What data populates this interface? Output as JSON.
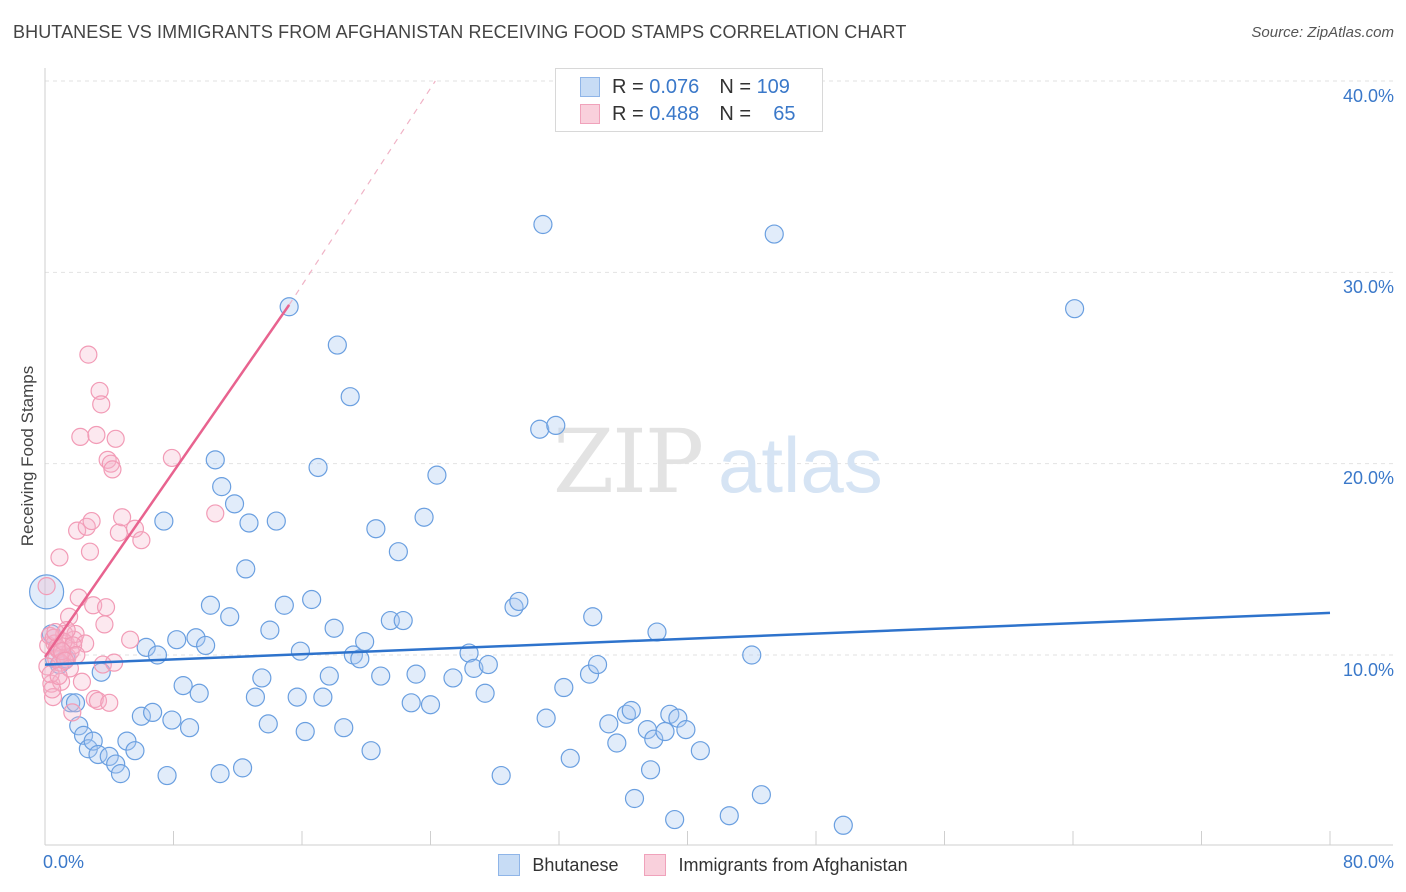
{
  "title": "BHUTANESE VS IMMIGRANTS FROM AFGHANISTAN RECEIVING FOOD STAMPS CORRELATION CHART",
  "source_prefix": "Source: ",
  "source_site": "ZipAtlas.com",
  "watermark": "ZIPatlas",
  "legend": {
    "r_label": "R =",
    "n_label": "N =",
    "blue": {
      "r": "0.076",
      "n": "109"
    },
    "pink": {
      "r": "0.488",
      "n": "65"
    }
  },
  "colors": {
    "blue": "#6a9fe0",
    "blue_line": "#2e73cc",
    "pink": "#f29bb6",
    "pink_line": "#e8638f",
    "tick": "#3a78c9"
  },
  "chart_data": {
    "type": "scatter",
    "title": "BHUTANESE VS IMMIGRANTS FROM AFGHANISTAN RECEIVING FOOD STAMPS CORRELATION CHART",
    "xlabel": "",
    "ylabel": "Receiving Food Stamps",
    "xlim": [
      0,
      80
    ],
    "ylim": [
      0,
      40
    ],
    "x_tick_labels": [
      "0.0%",
      "80.0%"
    ],
    "y_ticks": [
      10,
      20,
      30,
      40
    ],
    "y_tick_labels": [
      "10.0%",
      "20.0%",
      "30.0%",
      "40.0%"
    ],
    "legend_position": "bottom-center",
    "series": [
      {
        "name": "Bhutanese",
        "color": "#6a9fe0",
        "trend": {
          "x0": 0,
          "y0": 9.5,
          "x1": 80,
          "y1": 12.2
        },
        "points": [
          [
            0.1,
            13.3
          ],
          [
            0.4,
            11.1
          ],
          [
            0.6,
            9.8
          ],
          [
            0.9,
            9.5
          ],
          [
            1.3,
            9.8
          ],
          [
            1.6,
            7.5
          ],
          [
            1.9,
            7.5
          ],
          [
            2.1,
            6.3
          ],
          [
            2.4,
            5.8
          ],
          [
            2.7,
            5.1
          ],
          [
            3.0,
            5.5
          ],
          [
            3.3,
            4.8
          ],
          [
            3.5,
            9.1
          ],
          [
            4.0,
            4.7
          ],
          [
            4.4,
            4.3
          ],
          [
            4.7,
            3.8
          ],
          [
            5.1,
            5.5
          ],
          [
            5.6,
            5.0
          ],
          [
            6.0,
            6.8
          ],
          [
            6.3,
            10.4
          ],
          [
            6.7,
            7.0
          ],
          [
            7.0,
            10.0
          ],
          [
            7.4,
            17.0
          ],
          [
            7.6,
            3.7
          ],
          [
            7.9,
            6.6
          ],
          [
            8.2,
            10.8
          ],
          [
            8.6,
            8.4
          ],
          [
            9.0,
            6.2
          ],
          [
            9.4,
            10.9
          ],
          [
            9.6,
            8.0
          ],
          [
            10.0,
            10.5
          ],
          [
            10.3,
            12.6
          ],
          [
            10.6,
            20.2
          ],
          [
            10.9,
            3.8
          ],
          [
            11.0,
            18.8
          ],
          [
            11.5,
            12.0
          ],
          [
            11.8,
            17.9
          ],
          [
            12.3,
            4.1
          ],
          [
            12.5,
            14.5
          ],
          [
            12.7,
            16.9
          ],
          [
            13.1,
            7.8
          ],
          [
            13.5,
            8.8
          ],
          [
            13.9,
            6.4
          ],
          [
            14.0,
            11.3
          ],
          [
            14.4,
            17.0
          ],
          [
            14.9,
            12.6
          ],
          [
            15.2,
            28.2
          ],
          [
            15.7,
            7.8
          ],
          [
            15.9,
            10.2
          ],
          [
            16.2,
            6.0
          ],
          [
            16.6,
            12.9
          ],
          [
            17.0,
            19.8
          ],
          [
            17.3,
            7.8
          ],
          [
            17.7,
            8.9
          ],
          [
            18.0,
            11.4
          ],
          [
            18.2,
            26.2
          ],
          [
            18.6,
            6.2
          ],
          [
            19.0,
            23.5
          ],
          [
            19.2,
            10.0
          ],
          [
            19.6,
            9.8
          ],
          [
            19.9,
            10.7
          ],
          [
            20.3,
            5.0
          ],
          [
            20.6,
            16.6
          ],
          [
            20.9,
            8.9
          ],
          [
            21.5,
            11.8
          ],
          [
            22.0,
            15.4
          ],
          [
            22.3,
            11.8
          ],
          [
            22.8,
            7.5
          ],
          [
            23.1,
            9.0
          ],
          [
            23.6,
            17.2
          ],
          [
            24.0,
            7.4
          ],
          [
            24.4,
            19.4
          ],
          [
            25.4,
            8.8
          ],
          [
            26.4,
            10.1
          ],
          [
            26.7,
            9.3
          ],
          [
            27.4,
            8.0
          ],
          [
            27.6,
            9.5
          ],
          [
            28.4,
            3.7
          ],
          [
            29.2,
            12.5
          ],
          [
            29.5,
            12.8
          ],
          [
            30.8,
            21.8
          ],
          [
            31.0,
            32.5
          ],
          [
            31.2,
            6.7
          ],
          [
            31.8,
            22.0
          ],
          [
            32.3,
            8.3
          ],
          [
            32.7,
            4.6
          ],
          [
            33.9,
            9.0
          ],
          [
            34.1,
            12.0
          ],
          [
            34.4,
            9.5
          ],
          [
            35.1,
            6.4
          ],
          [
            35.6,
            5.4
          ],
          [
            36.2,
            6.9
          ],
          [
            36.5,
            7.1
          ],
          [
            36.7,
            2.5
          ],
          [
            37.5,
            6.1
          ],
          [
            37.7,
            4.0
          ],
          [
            37.9,
            5.6
          ],
          [
            38.1,
            11.2
          ],
          [
            38.6,
            6.0
          ],
          [
            38.9,
            6.9
          ],
          [
            39.2,
            1.4
          ],
          [
            39.4,
            6.7
          ],
          [
            39.9,
            6.1
          ],
          [
            40.8,
            5.0
          ],
          [
            42.6,
            1.6
          ],
          [
            44.0,
            10.0
          ],
          [
            44.6,
            2.7
          ],
          [
            45.4,
            32.0
          ],
          [
            49.7,
            1.1
          ],
          [
            64.1,
            28.1
          ]
        ]
      },
      {
        "name": "Immigrants from Afghanistan",
        "color": "#f29bb6",
        "trend": {
          "x0": 0,
          "y0": 9.9,
          "x1": 15.2,
          "y1": 28.3
        },
        "trend_dashed_to": {
          "x": 24.3,
          "y": 40.0
        },
        "points": [
          [
            0.1,
            13.6
          ],
          [
            0.2,
            10.5
          ],
          [
            0.3,
            11.0
          ],
          [
            0.4,
            8.5
          ],
          [
            0.5,
            7.8
          ],
          [
            0.6,
            10.6
          ],
          [
            0.7,
            9.8
          ],
          [
            0.8,
            10.3
          ],
          [
            0.9,
            15.1
          ],
          [
            1.0,
            8.6
          ],
          [
            1.1,
            10.0
          ],
          [
            1.2,
            11.1
          ],
          [
            1.3,
            10.6
          ],
          [
            1.4,
            9.9
          ],
          [
            1.5,
            12.0
          ],
          [
            1.6,
            10.2
          ],
          [
            1.7,
            7.0
          ],
          [
            1.8,
            10.8
          ],
          [
            1.9,
            11.1
          ],
          [
            2.0,
            16.5
          ],
          [
            2.1,
            13.0
          ],
          [
            2.2,
            21.4
          ],
          [
            2.3,
            8.6
          ],
          [
            2.5,
            10.6
          ],
          [
            2.6,
            16.7
          ],
          [
            2.7,
            25.7
          ],
          [
            2.8,
            15.4
          ],
          [
            2.9,
            17.0
          ],
          [
            3.0,
            12.6
          ],
          [
            3.1,
            7.7
          ],
          [
            3.2,
            21.5
          ],
          [
            3.3,
            7.6
          ],
          [
            3.4,
            23.8
          ],
          [
            3.5,
            23.1
          ],
          [
            3.6,
            9.5
          ],
          [
            3.7,
            11.6
          ],
          [
            3.8,
            12.5
          ],
          [
            3.9,
            20.2
          ],
          [
            4.0,
            7.5
          ],
          [
            4.1,
            20.0
          ],
          [
            4.2,
            19.7
          ],
          [
            4.3,
            9.6
          ],
          [
            4.4,
            21.3
          ],
          [
            4.6,
            16.4
          ],
          [
            4.8,
            17.2
          ],
          [
            5.3,
            10.8
          ],
          [
            5.6,
            16.6
          ],
          [
            6.0,
            16.0
          ],
          [
            7.9,
            20.3
          ],
          [
            10.6,
            17.4
          ],
          [
            0.15,
            9.4
          ],
          [
            0.35,
            9.0
          ],
          [
            0.55,
            10.9
          ],
          [
            0.75,
            10.4
          ],
          [
            0.95,
            9.6
          ],
          [
            1.15,
            10.7
          ],
          [
            1.35,
            11.3
          ],
          [
            1.55,
            9.3
          ],
          [
            1.75,
            10.5
          ],
          [
            1.95,
            10.0
          ],
          [
            0.45,
            8.2
          ],
          [
            0.65,
            11.2
          ],
          [
            0.85,
            8.9
          ],
          [
            1.05,
            10.2
          ],
          [
            1.25,
            9.7
          ]
        ]
      }
    ]
  }
}
